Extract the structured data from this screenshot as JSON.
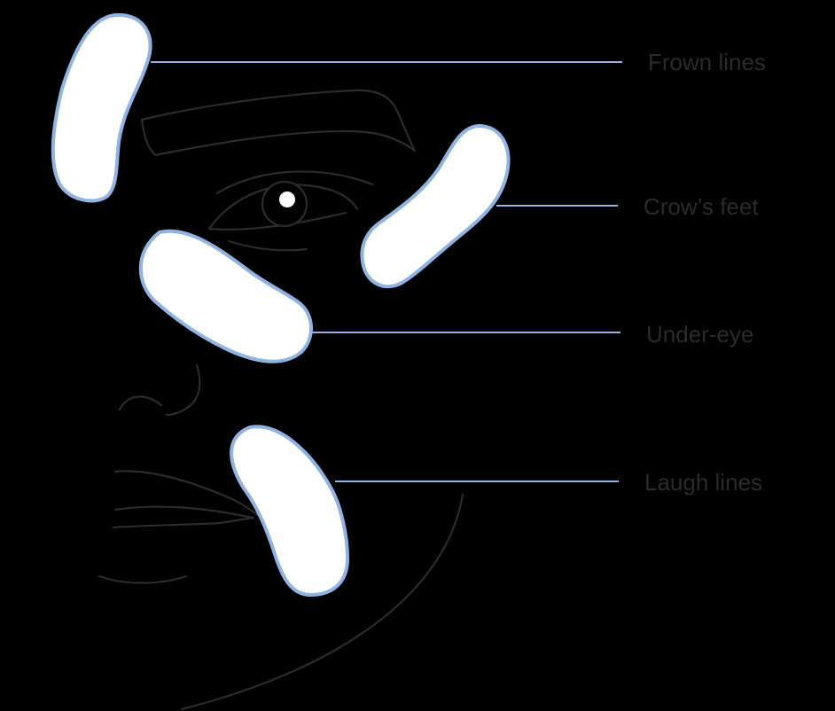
{
  "labels": {
    "frown_lines": "Frown lines",
    "crows_feet": "Crow’s feet",
    "under_eye": "Under-eye",
    "laugh_lines": "Laugh lines"
  },
  "colors": {
    "background": "#000000",
    "patch_fill": "#ffffff",
    "patch_outline": "#8fb4e3",
    "face_line": "#2b2b2b",
    "label_text": "#2a2a2a"
  }
}
